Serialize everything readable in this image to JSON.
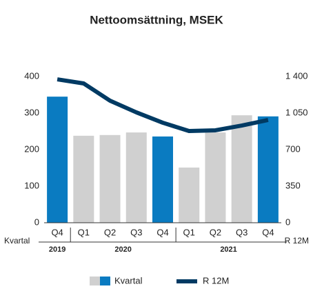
{
  "chart_data": {
    "type": "bar+line",
    "title": "Nettoomsättning, MSEK",
    "categories": [
      "Q4",
      "Q1",
      "Q2",
      "Q3",
      "Q4",
      "Q1",
      "Q2",
      "Q3",
      "Q4"
    ],
    "groups": [
      {
        "label": "2019",
        "span": 1
      },
      {
        "label": "2020",
        "span": 4
      },
      {
        "label": "2021",
        "span": 4
      }
    ],
    "xlabel": "Kvartal",
    "y2label": "R 12M",
    "series": [
      {
        "name": "Kvartal",
        "type": "bar",
        "color": "#d0d0d0",
        "colors": [
          "#0a7bc1",
          "#d0d0d0",
          "#d0d0d0",
          "#d0d0d0",
          "#0a7bc1",
          "#d0d0d0",
          "#d0d0d0",
          "#d0d0d0",
          "#0a7bc1"
        ],
        "values": [
          345,
          238,
          240,
          247,
          236,
          151,
          247,
          294,
          291
        ]
      },
      {
        "name": "R 12M",
        "type": "line",
        "axis": "y2",
        "color": "#003a63",
        "values": [
          1373,
          1334,
          1169,
          1057,
          958,
          878,
          885,
          931,
          984
        ]
      }
    ],
    "ylim": [
      0,
      400
    ],
    "yticks": [
      0,
      100,
      200,
      300,
      400
    ],
    "y2lim": [
      0,
      1400
    ],
    "y2ticks": [
      0,
      350,
      700,
      {
        "value": 1050,
        "label": "1 050"
      },
      {
        "value": 1400,
        "label": "1 400"
      }
    ]
  }
}
